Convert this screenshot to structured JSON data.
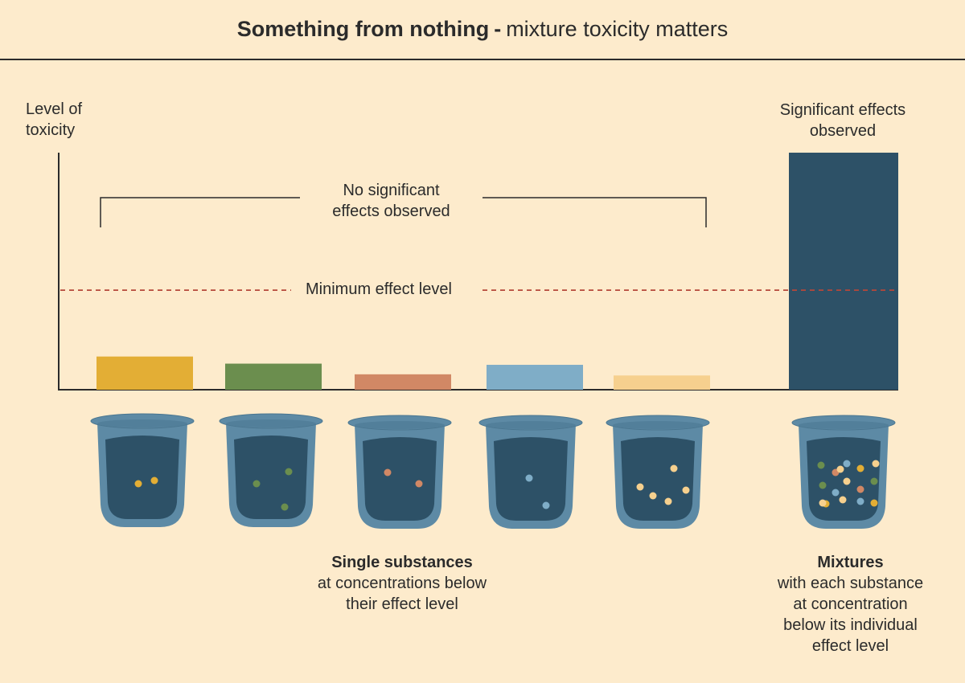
{
  "title": {
    "bold": "Something from nothing",
    "separator": "-",
    "rest": "mixture toxicity matters"
  },
  "axis": {
    "ylabel_line1": "Level of",
    "ylabel_line2": "toxicity"
  },
  "labels": {
    "no_effects_line1": "No significant",
    "no_effects_line2": "effects observed",
    "min_effect": "Minimum effect level",
    "significant_line1": "Significant effects",
    "significant_line2": "observed"
  },
  "captions": {
    "single": {
      "bold": "Single substances",
      "line1": "at concentrations below",
      "line2": "their effect level"
    },
    "mixture": {
      "bold": "Mixtures",
      "line1": "with each substance",
      "line2": "at concentration",
      "line3": "below its individual",
      "line4": "effect level"
    }
  },
  "chart_data": {
    "type": "bar",
    "bars": [
      {
        "value": 0.14,
        "color": "#e3ae35"
      },
      {
        "value": 0.11,
        "color": "#6b8e4e"
      },
      {
        "value": 0.065,
        "color": "#d18865"
      },
      {
        "value": 0.105,
        "color": "#7fadc7"
      },
      {
        "value": 0.06,
        "color": "#f6d08e"
      },
      {
        "value": 1.0,
        "color": "#2d5167"
      }
    ],
    "threshold": 0.42,
    "threshold_color": "#b5473a"
  },
  "beakers": [
    {
      "dots": [
        {
          "c": "#e3ae35"
        },
        {
          "c": "#e3ae35"
        }
      ]
    },
    {
      "dots": [
        {
          "c": "#6b8e4e"
        },
        {
          "c": "#6b8e4e"
        },
        {
          "c": "#6b8e4e"
        }
      ]
    },
    {
      "dots": [
        {
          "c": "#d18865"
        },
        {
          "c": "#d18865"
        }
      ]
    },
    {
      "dots": [
        {
          "c": "#7fadc7"
        },
        {
          "c": "#7fadc7"
        }
      ]
    },
    {
      "dots": [
        {
          "c": "#f6d08e"
        },
        {
          "c": "#f6d08e"
        },
        {
          "c": "#f6d08e"
        },
        {
          "c": "#f6d08e"
        },
        {
          "c": "#f6d08e"
        }
      ]
    },
    {
      "dots": [
        {
          "c": "#6b8e4e"
        },
        {
          "c": "#d18865"
        },
        {
          "c": "#7fadc7"
        },
        {
          "c": "#e3ae35"
        },
        {
          "c": "#f6d08e"
        },
        {
          "c": "#6b8e4e"
        },
        {
          "c": "#f6d08e"
        },
        {
          "c": "#7fadc7"
        },
        {
          "c": "#d18865"
        },
        {
          "c": "#6b8e4e"
        },
        {
          "c": "#e3ae35"
        },
        {
          "c": "#f6d08e"
        },
        {
          "c": "#7fadc7"
        },
        {
          "c": "#f6d08e"
        },
        {
          "c": "#e3ae35"
        },
        {
          "c": "#f6d08e"
        }
      ]
    }
  ],
  "colors": {
    "background": "#fdebcc",
    "text": "#2b2b2b",
    "beaker_outer": "#5d8aa5",
    "beaker_inner": "#2d5167"
  }
}
